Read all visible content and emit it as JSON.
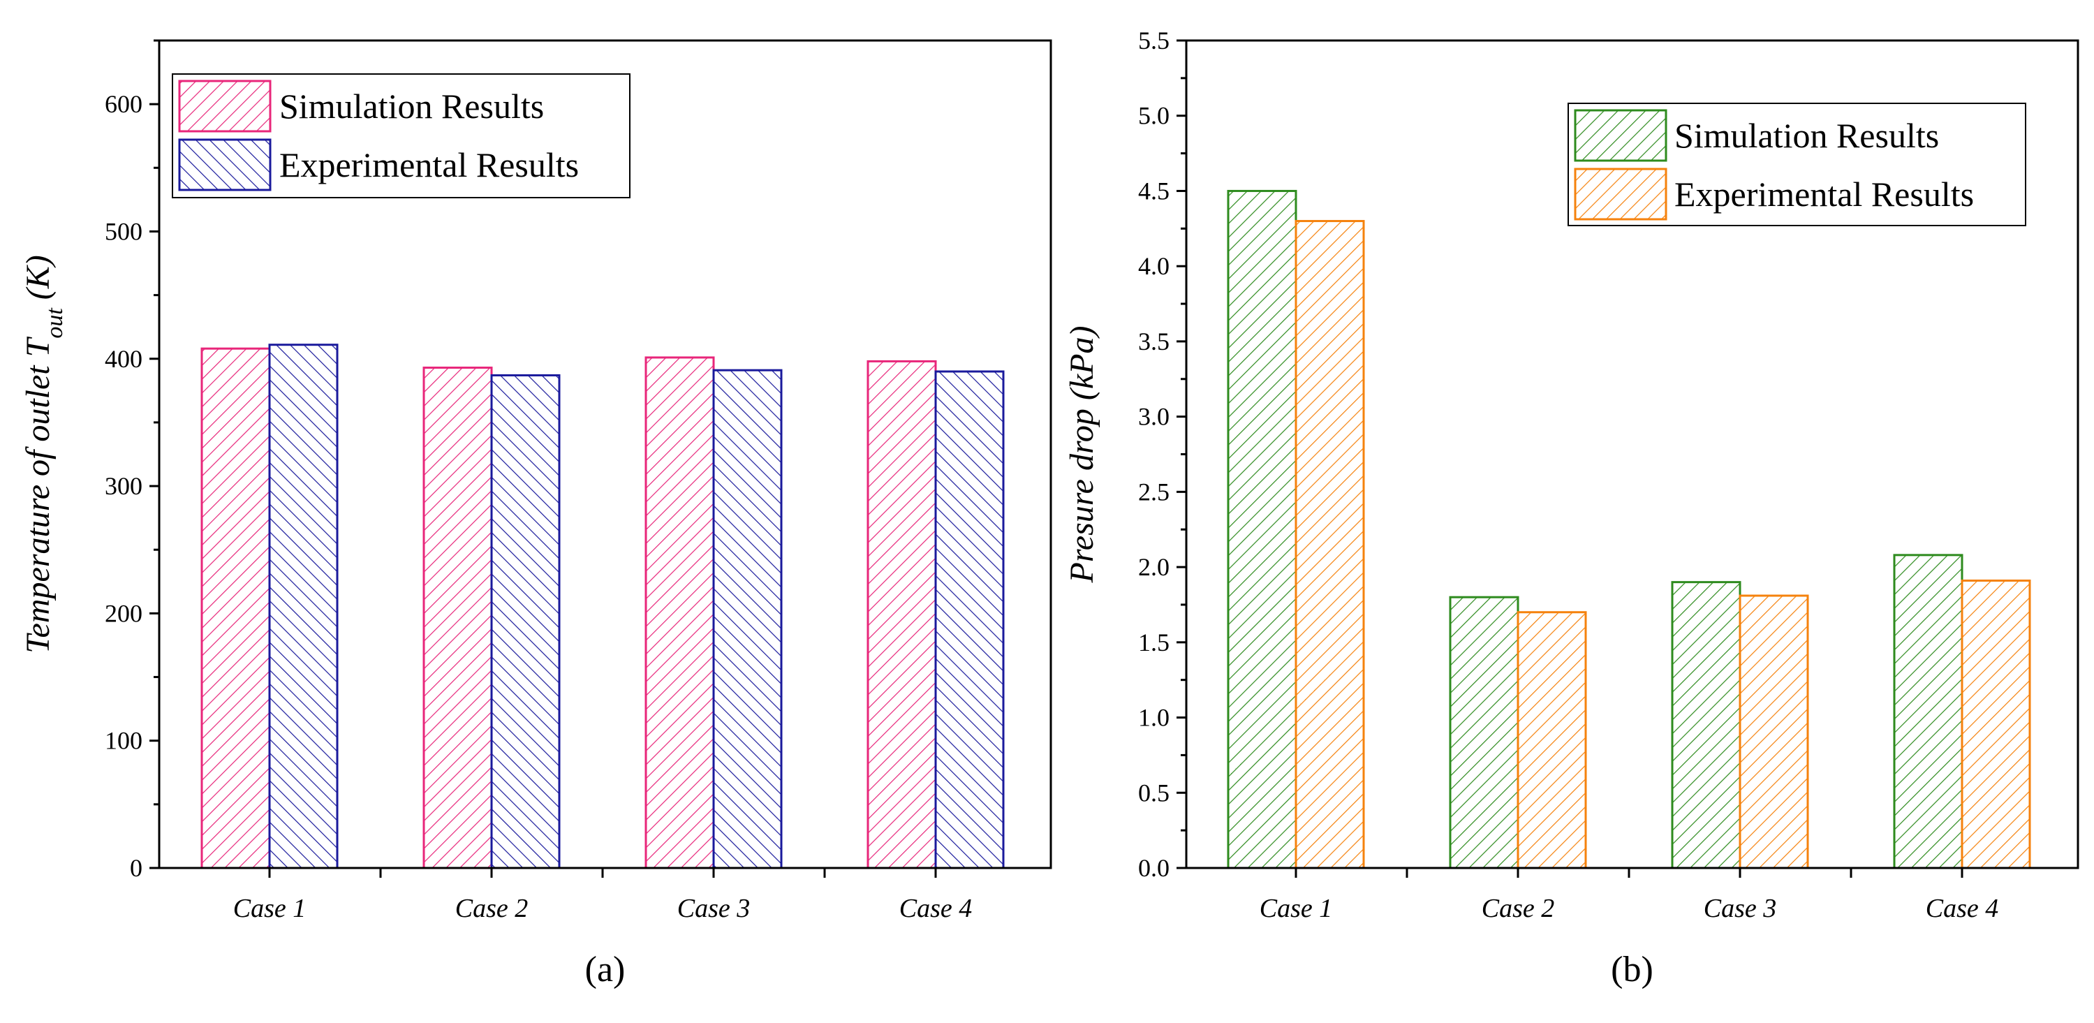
{
  "chart_data": [
    {
      "type": "bar",
      "panel_label": "(a)",
      "categories": [
        "Case 1",
        "Case 2",
        "Case 3",
        "Case 4"
      ],
      "series": [
        {
          "name": "Simulation Results",
          "values": [
            408,
            393,
            401,
            398
          ],
          "color": "#e8267a",
          "hatch": "forward-diagonal"
        },
        {
          "name": "Experimental Results",
          "values": [
            411,
            387,
            391,
            390
          ],
          "color": "#1a1a9c",
          "hatch": "backward-diagonal"
        }
      ],
      "xlabel": "",
      "ylabel": "Temperature of outlet T",
      "ylabel_subscript": "out",
      "ylabel_unit": "(K)",
      "ylim": [
        0,
        650
      ],
      "yticks": [
        0,
        100,
        200,
        300,
        400,
        500,
        600
      ],
      "ytick_labels": [
        "0",
        "100",
        "200",
        "300",
        "400",
        "500",
        "600"
      ],
      "grid": false,
      "legend_position": "top-left"
    },
    {
      "type": "bar",
      "panel_label": "(b)",
      "categories": [
        "Case 1",
        "Case 2",
        "Case 3",
        "Case 4"
      ],
      "series": [
        {
          "name": "Simulation Results",
          "values": [
            4.5,
            1.8,
            1.9,
            2.08
          ],
          "color": "#2e8b1e",
          "hatch": "forward-diagonal"
        },
        {
          "name": "Experimental Results",
          "values": [
            4.3,
            1.7,
            1.81,
            1.91
          ],
          "color": "#f5820d",
          "hatch": "forward-diagonal"
        }
      ],
      "xlabel": "",
      "ylabel": "Presure drop (kPa)",
      "ylim": [
        0,
        5.5
      ],
      "yticks": [
        0,
        0.5,
        1,
        1.5,
        2,
        2.5,
        3,
        3.5,
        4,
        4.5,
        5,
        5.5
      ],
      "ytick_labels": [
        "0.0",
        "0.5",
        "1.0",
        "1.5",
        "2.0",
        "2.5",
        "3.0",
        "3.5",
        "4.0",
        "4.5",
        "5.0",
        "5.5"
      ],
      "grid": false,
      "legend_position": "top-right"
    }
  ]
}
